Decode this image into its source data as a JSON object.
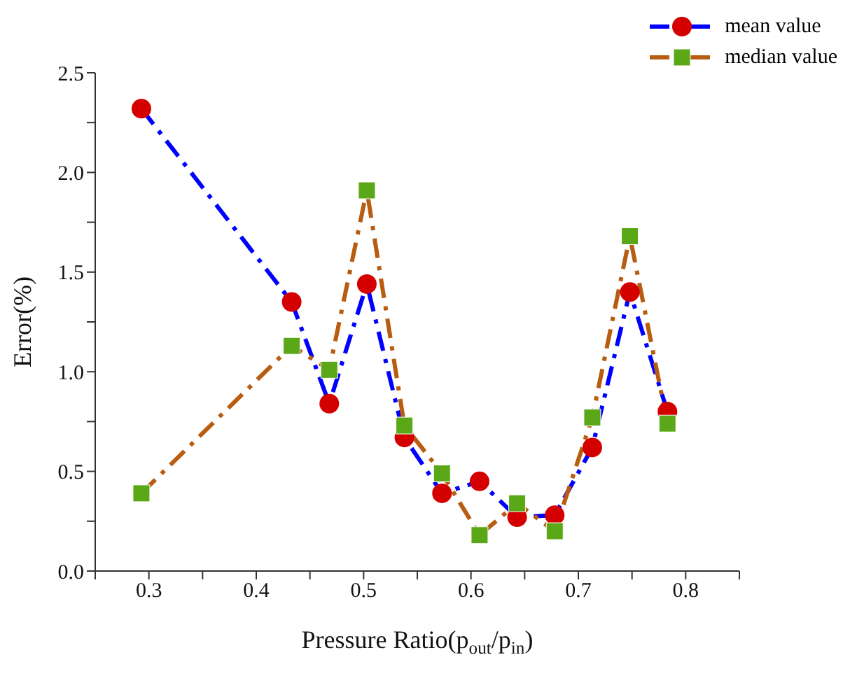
{
  "chart_data": {
    "type": "line",
    "xlabel": "Pressure Ratio(p$_{out}$/p$_{in}$)",
    "ylabel": "Error(%)",
    "x": [
      0.293,
      0.433,
      0.468,
      0.503,
      0.538,
      0.573,
      0.608,
      0.643,
      0.678,
      0.713,
      0.748,
      0.783
    ],
    "series": [
      {
        "name": "mean value",
        "color": "#0000ff",
        "marker": "circle",
        "colors": [
          "#d40000",
          "#d40000",
          "#d40000",
          "#d40000",
          "#d40000",
          "#d40000",
          "#d40000",
          "#d40000",
          "#d40000",
          "#d40000",
          "#d40000",
          "#d40000"
        ],
        "values": [
          2.32,
          1.35,
          0.84,
          1.44,
          0.67,
          0.39,
          0.45,
          0.27,
          0.28,
          0.62,
          1.4,
          0.8
        ]
      },
      {
        "name": "median value",
        "color": "#b85c10",
        "marker": "square",
        "colors": [
          "#5aa818",
          "#5aa818",
          "#5aa818",
          "#5aa818",
          "#5aa818",
          "#5aa818",
          "#5aa818",
          "#5aa818",
          "#5aa818",
          "#5aa818",
          "#5aa818",
          "#5aa818"
        ],
        "values": [
          0.39,
          1.13,
          1.01,
          1.91,
          0.73,
          0.49,
          0.18,
          0.34,
          0.2,
          0.77,
          1.68,
          0.74
        ]
      }
    ],
    "xlim": [
      0.25,
      0.85
    ],
    "xticks": [
      {
        "value": 0.25,
        "label": null
      },
      0.3,
      {
        "value": 0.35,
        "label": null
      },
      0.4,
      {
        "value": 0.45,
        "label": null
      },
      0.5,
      {
        "value": 0.55,
        "label": null
      },
      0.6,
      {
        "value": 0.65,
        "label": null
      },
      0.7,
      {
        "value": 0.75,
        "label": null
      },
      0.8,
      {
        "value": 0.85,
        "label": null
      }
    ],
    "ylim": [
      0,
      2.5
    ],
    "yticks": [
      {
        "value": 0,
        "label": "0.0"
      },
      {
        "value": 0.25,
        "label": null
      },
      0.5,
      {
        "value": 0.75,
        "label": null
      },
      {
        "value": 1,
        "label": "1.0"
      },
      {
        "value": 1.25,
        "label": null
      },
      1.5,
      {
        "value": 1.75,
        "label": null
      },
      {
        "value": 2,
        "label": "2.0"
      },
      {
        "value": 2.25,
        "label": null
      },
      2.5
    ],
    "grid": false,
    "legend": "top right",
    "line_style": "dashed"
  }
}
